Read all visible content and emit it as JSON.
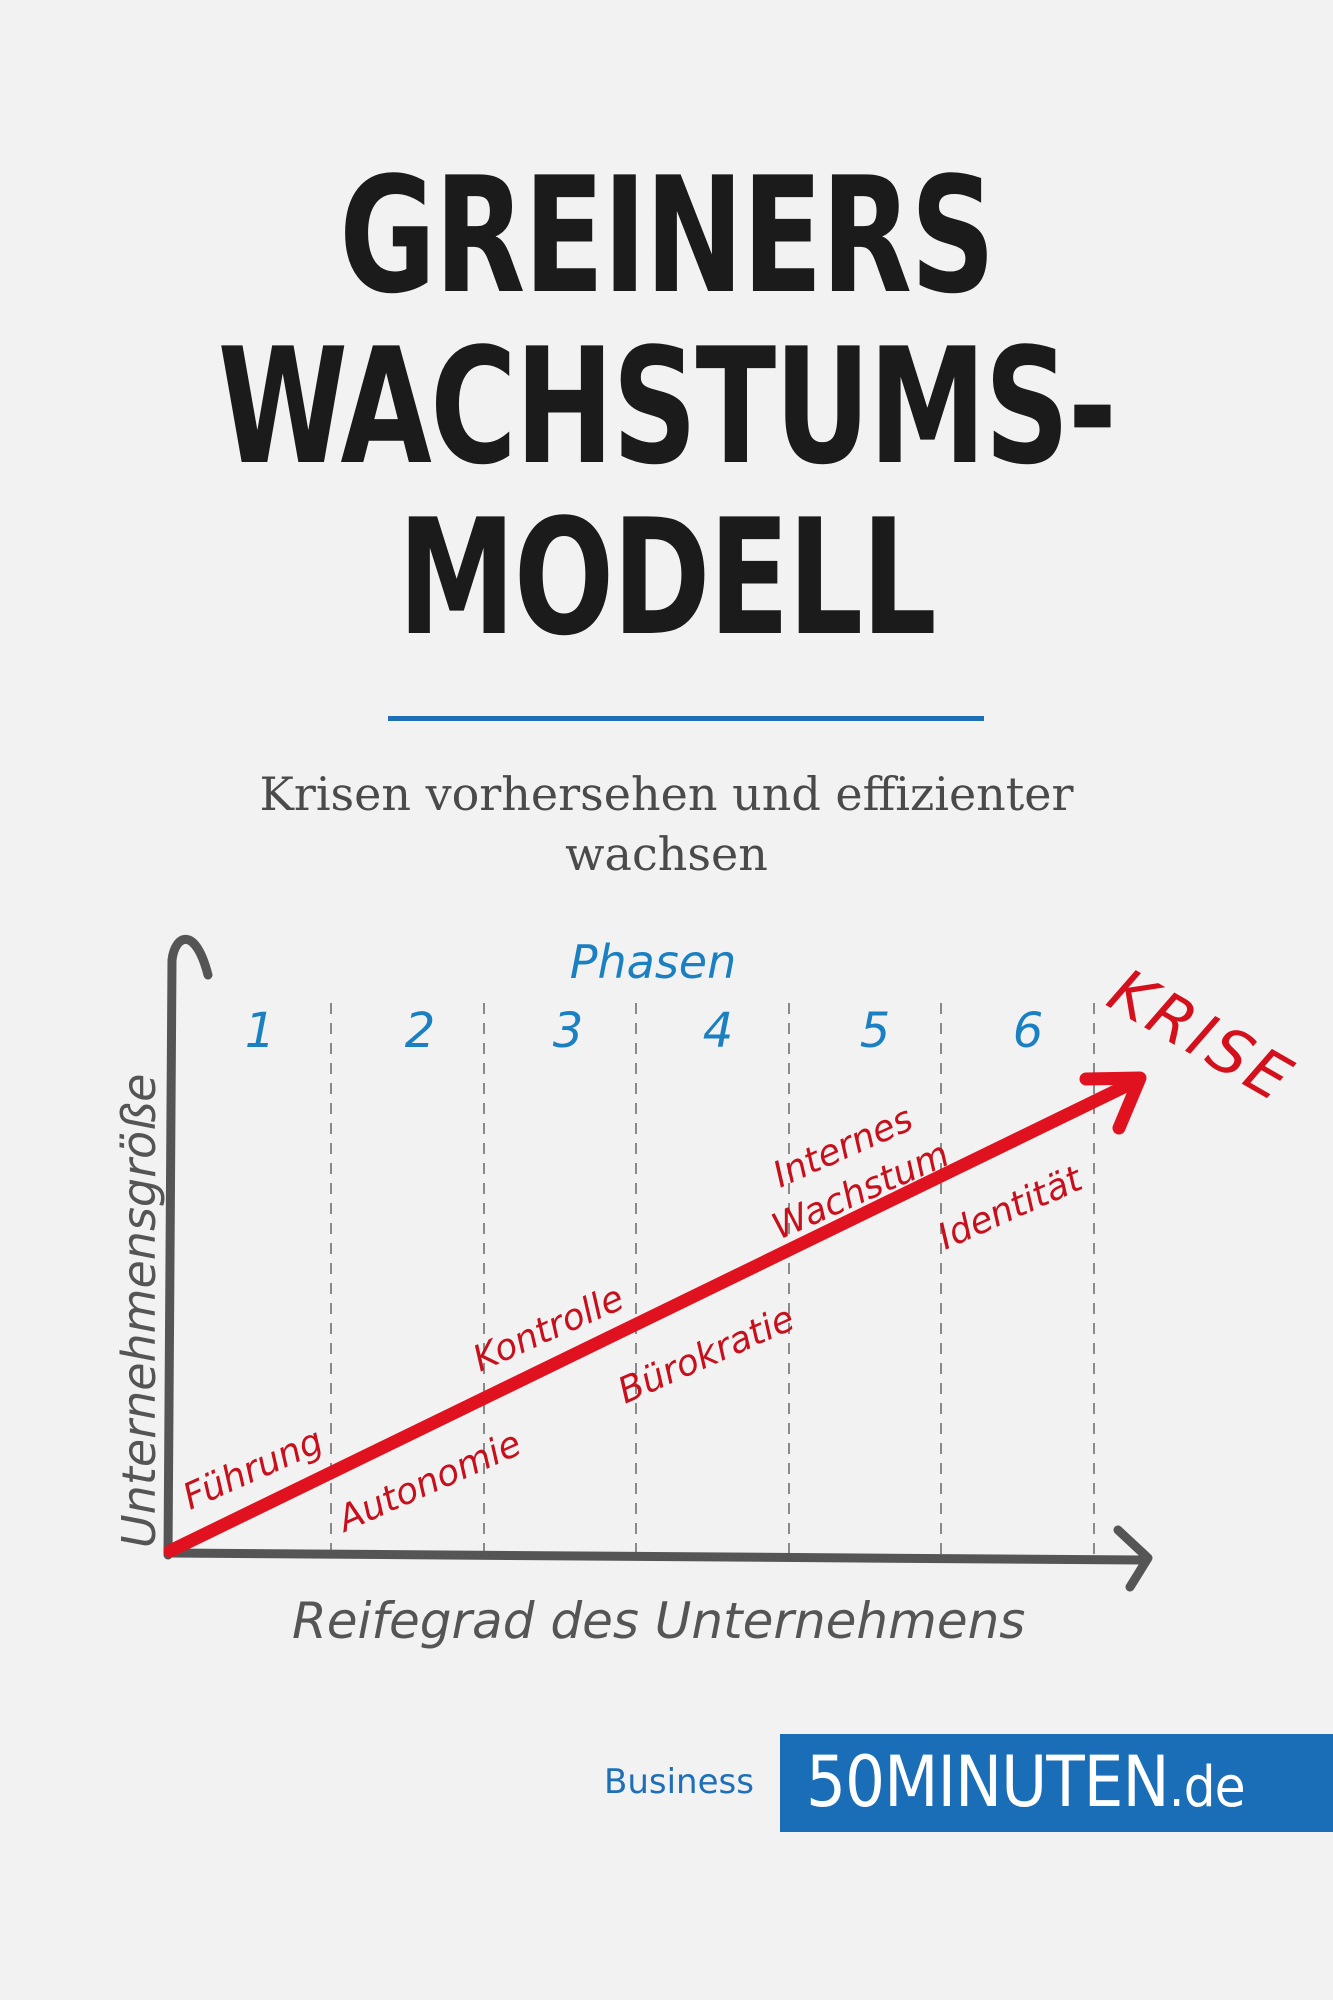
{
  "title_lines": [
    "GREINERS",
    "WACHSTUMS-",
    "MODELL"
  ],
  "subtitle_lines": [
    "Krisen vorhersehen und effizienter",
    "wachsen"
  ],
  "diagram": {
    "y_axis_label": "Unternehmensgröße",
    "x_axis_label": "Reifegrad des Unternehmens",
    "phases_label": "Phasen",
    "phase_numbers": [
      "1",
      "2",
      "3",
      "4",
      "5",
      "6"
    ],
    "crisis_label": "KRISE",
    "growth_labels": [
      "Führung",
      "Kontrolle",
      "Internes",
      "Wachstum",
      "Identität"
    ],
    "crisis_labels": [
      "Autonomie",
      "Bürokratie"
    ],
    "colors": {
      "axis": "#555555",
      "arrow": "#e0121f",
      "red_text": "#c8101c",
      "phase_blue": "#1a80c2",
      "dash": "#8a8a8a"
    }
  },
  "footer": {
    "category": "Business",
    "brand_main": "50MINUTEN",
    "brand_suffix": ".de"
  }
}
